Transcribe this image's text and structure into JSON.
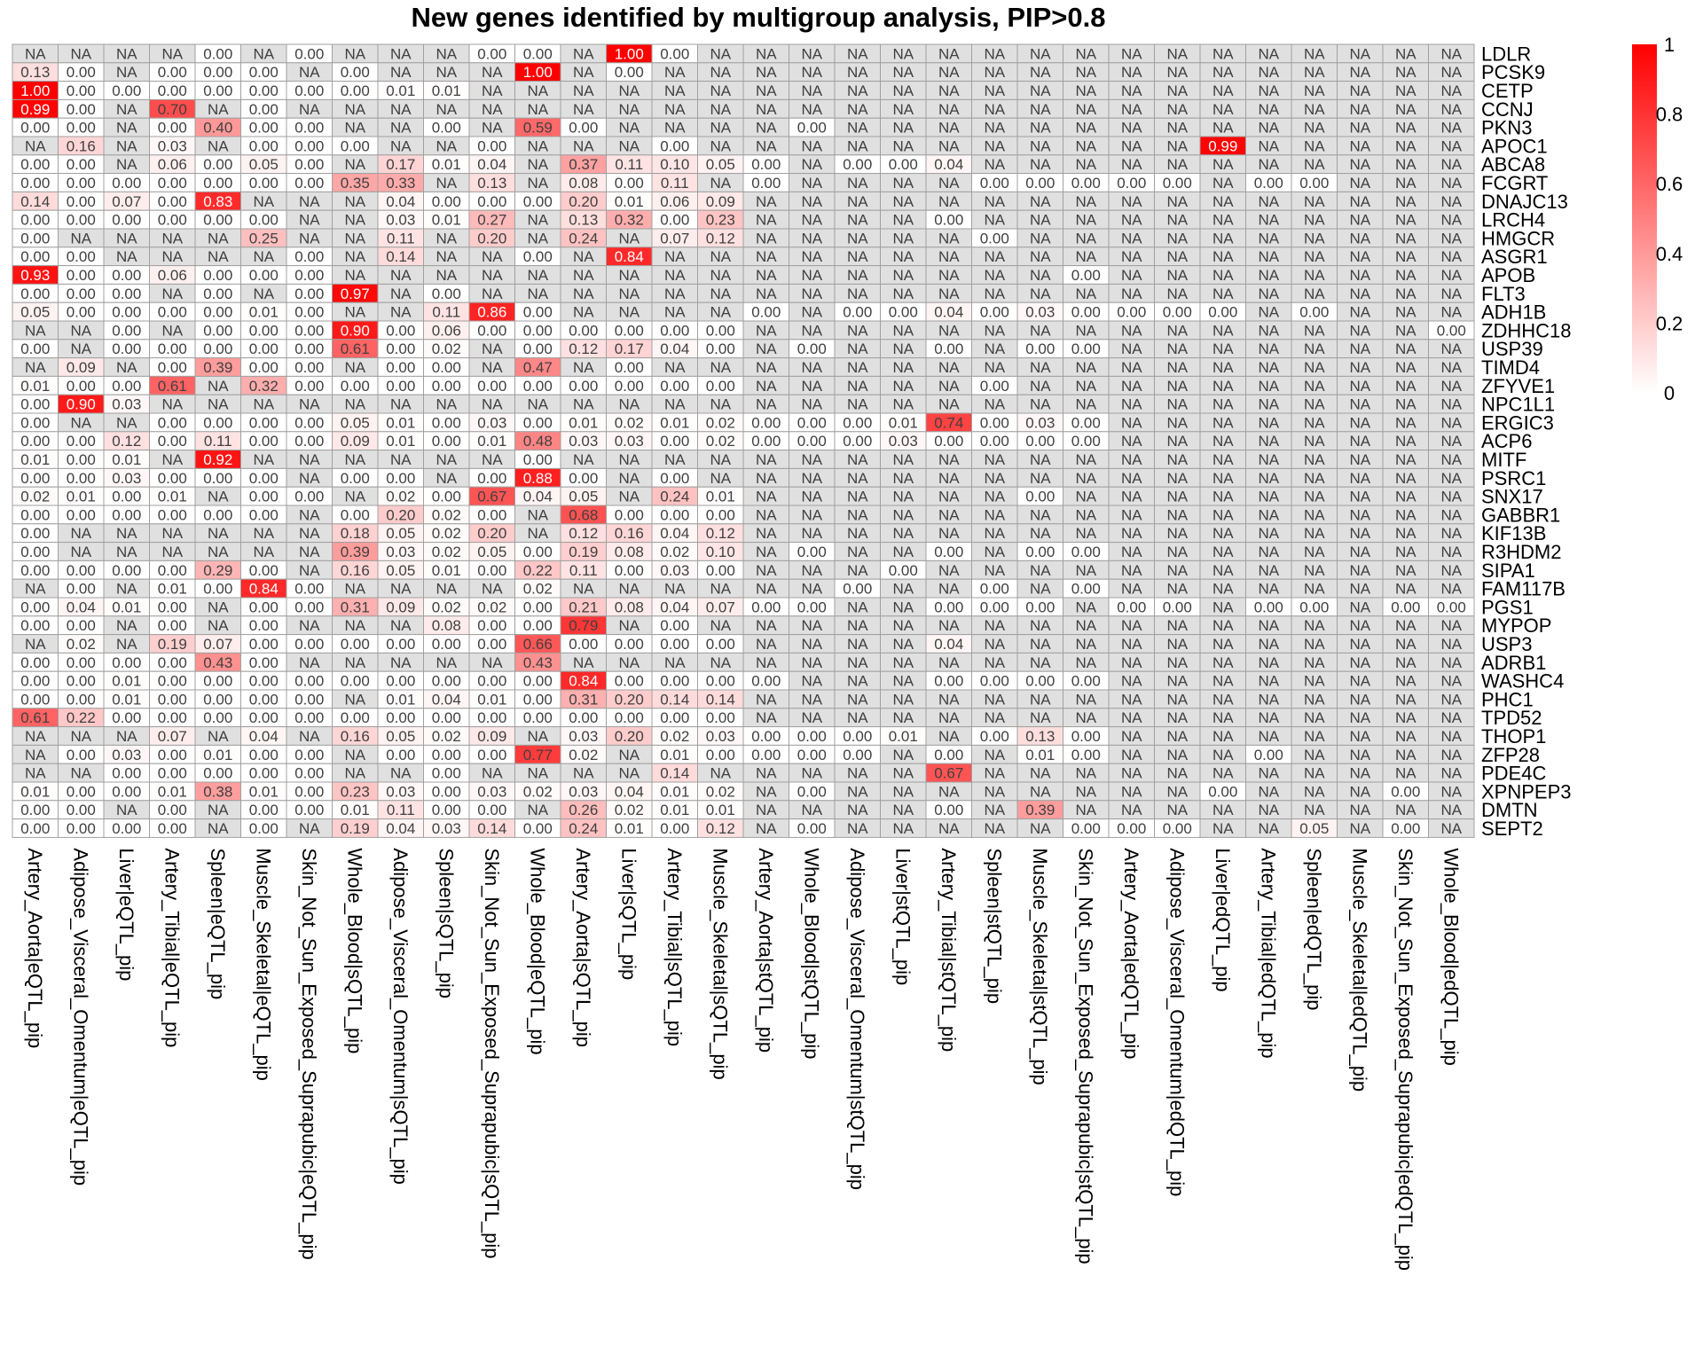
{
  "chart_data": {
    "type": "heatmap",
    "title": "New genes identified by multigroup analysis, PIP>0.8",
    "columns": [
      "Artery_Aorta|eQTL_pip",
      "Adipose_Visceral_Omentum|eQTL_pip",
      "Liver|eQTL_pip",
      "Artery_Tibial|eQTL_pip",
      "Spleen|eQTL_pip",
      "Muscle_Skeletal|eQTL_pip",
      "Skin_Not_Sun_Exposed_Suprapubic|eQTL_pip",
      "Whole_Blood|sQTL_pip",
      "Adipose_Visceral_Omentum|sQTL_pip",
      "Spleen|sQTL_pip",
      "Skin_Not_Sun_Exposed_Suprapubic|sQTL_pip",
      "Whole_Blood|eQTL_pip",
      "Artery_Aorta|sQTL_pip",
      "Liver|sQTL_pip",
      "Artery_Tibial|sQTL_pip",
      "Muscle_Skeletal|sQTL_pip",
      "Artery_Aorta|stQTL_pip",
      "Whole_Blood|stQTL_pip",
      "Adipose_Visceral_Omentum|stQTL_pip",
      "Liver|stQTL_pip",
      "Artery_Tibial|stQTL_pip",
      "Spleen|stQTL_pip",
      "Muscle_Skeletal|stQTL_pip",
      "Skin_Not_Sun_Exposed_Suprapubic|stQTL_pip",
      "Artery_Aorta|edQTL_pip",
      "Adipose_Visceral_Omentum|edQTL_pip",
      "Liver|edQTL_pip",
      "Artery_Tibial|edQTL_pip",
      "Spleen|edQTL_pip",
      "Muscle_Skeletal|edQTL_pip",
      "Skin_Not_Sun_Exposed_Suprapubic|edQTL_pip",
      "Whole_Blood|edQTL_pip"
    ],
    "rows": [
      "LDLR",
      "PCSK9",
      "CETP",
      "CCNJ",
      "PKN3",
      "APOC1",
      "ABCA8",
      "FCGRT",
      "DNAJC13",
      "LRCH4",
      "HMGCR",
      "ASGR1",
      "APOB",
      "FLT3",
      "ADH1B",
      "ZDHHC18",
      "USP39",
      "TIMD4",
      "ZFYVE1",
      "NPC1L1",
      "ERGIC3",
      "ACP6",
      "MITF",
      "PSRC1",
      "SNX17",
      "GABBR1",
      "KIF13B",
      "R3HDM2",
      "SIPA1",
      "FAM117B",
      "PGS1",
      "MYPOP",
      "USP3",
      "ADRB1",
      "WASHC4",
      "PHC1",
      "TPD52",
      "THOP1",
      "ZFP28",
      "PDE4C",
      "XPNPEP3",
      "DMTN",
      "SEPT2"
    ],
    "values": [
      "NA NA NA NA 0.00 NA 0.00 NA NA NA 0.00 0.00 NA 1.00 0.00 NA NA NA NA NA NA NA NA NA NA NA NA NA NA NA NA NA",
      "0.13 0.00 NA 0.00 0.00 0.00 NA 0.00 NA NA NA 1.00 NA 0.00 NA NA NA NA NA NA NA NA NA NA NA NA NA NA NA NA NA NA",
      "1.00 0.00 0.00 0.00 0.00 0.00 0.00 0.00 0.01 0.01 NA NA NA NA NA NA NA NA NA NA NA NA NA NA NA NA NA NA NA NA NA NA",
      "0.99 0.00 NA 0.70 NA 0.00 NA NA NA NA NA NA NA NA NA NA NA NA NA NA NA NA NA NA NA NA NA NA NA NA NA NA",
      "0.00 0.00 NA 0.00 0.40 0.00 0.00 NA NA 0.00 NA 0.59 0.00 NA NA NA NA 0.00 NA NA NA NA NA NA NA NA NA NA NA NA NA NA",
      "NA 0.16 NA 0.03 NA 0.00 0.00 0.00 NA NA 0.00 NA NA NA 0.00 NA NA NA NA NA NA NA NA NA NA NA 0.99 NA NA NA NA NA",
      "0.00 0.00 NA 0.06 0.00 0.05 0.00 NA 0.17 0.01 0.04 NA 0.37 0.11 0.10 0.05 0.00 NA 0.00 0.00 0.04 NA NA NA NA NA NA NA NA NA NA NA",
      "0.00 0.00 0.00 0.00 0.00 0.00 0.00 0.35 0.33 NA 0.13 NA 0.08 0.00 0.11 NA 0.00 NA NA NA NA 0.00 0.00 0.00 0.00 0.00 NA 0.00 0.00 NA NA NA",
      "0.14 0.00 0.07 0.00 0.83 NA NA NA 0.04 0.00 0.00 0.00 0.20 0.01 0.06 0.09 NA NA NA NA NA NA NA NA NA NA NA NA NA NA NA NA",
      "0.00 0.00 0.00 0.00 0.00 0.00 NA NA 0.03 0.01 0.27 NA 0.13 0.32 0.00 0.23 NA NA NA NA 0.00 NA NA NA NA NA NA NA NA NA NA NA",
      "0.00 NA NA NA NA 0.25 NA NA 0.11 NA 0.20 NA 0.24 NA 0.07 0.12 NA NA NA NA NA 0.00 NA NA NA NA NA NA NA NA NA NA",
      "0.00 0.00 NA NA NA NA 0.00 NA 0.14 NA NA 0.00 NA 0.84 NA NA NA NA NA NA NA NA NA NA NA NA NA NA NA NA NA NA",
      "0.93 0.00 0.00 0.06 0.00 0.00 0.00 NA NA NA NA NA NA NA NA NA NA NA NA NA NA NA NA 0.00 NA NA NA NA NA NA NA NA",
      "0.00 0.00 0.00 NA 0.00 NA 0.00 0.97 NA 0.00 NA NA NA NA NA NA NA NA NA NA NA NA NA NA NA NA NA NA NA NA NA NA",
      "0.05 0.00 0.00 0.00 0.00 0.01 0.00 NA NA 0.11 0.86 0.00 NA NA NA NA 0.00 NA 0.00 0.00 0.04 0.00 0.03 0.00 0.00 0.00 0.00 NA 0.00 NA NA NA",
      "NA NA 0.00 NA 0.00 0.00 0.00 0.90 0.00 0.06 0.00 0.00 0.00 0.00 0.00 0.00 NA NA NA NA NA NA NA NA NA NA NA NA NA NA NA 0.00",
      "0.00 NA 0.00 0.00 0.00 0.00 0.00 0.61 0.00 0.02 NA 0.00 0.12 0.17 0.04 0.00 NA 0.00 NA NA 0.00 NA 0.00 0.00 NA NA NA NA NA NA NA NA",
      "NA 0.09 NA 0.00 0.39 0.00 0.00 NA 0.00 0.00 NA 0.47 NA 0.00 NA NA NA NA NA NA NA NA NA NA NA NA NA NA NA NA NA NA",
      "0.01 0.00 0.00 0.61 NA 0.32 0.00 0.00 0.00 0.00 0.00 0.00 0.00 0.00 0.00 0.00 NA NA NA NA NA 0.00 NA NA NA NA NA NA NA NA NA NA",
      "0.00 0.90 0.03 NA NA NA NA NA NA NA NA NA NA NA NA NA NA NA NA NA NA NA NA NA NA NA NA NA NA NA NA NA",
      "0.00 NA NA 0.00 0.00 0.00 0.00 0.05 0.01 0.00 0.03 0.00 0.01 0.02 0.01 0.02 0.00 0.00 0.00 0.01 0.74 0.00 0.03 0.00 NA NA NA NA NA NA NA NA",
      "0.00 0.00 0.12 0.00 0.11 0.00 0.00 0.09 0.01 0.00 0.01 0.48 0.03 0.03 0.00 0.02 0.00 0.00 0.00 0.03 0.00 0.00 0.00 0.00 NA NA NA NA NA NA NA NA",
      "0.01 0.00 0.01 NA 0.92 NA NA NA NA NA NA 0.00 NA NA NA NA NA NA NA NA NA NA NA NA NA NA NA NA NA NA NA NA",
      "0.00 0.00 0.03 0.00 0.00 0.00 NA 0.00 0.00 NA 0.00 0.88 0.00 NA 0.00 NA NA NA NA NA NA NA NA NA NA NA NA NA NA NA NA NA",
      "0.02 0.01 0.00 0.01 NA 0.00 0.00 NA 0.02 0.00 0.67 0.04 0.05 NA 0.24 0.01 NA NA NA NA NA NA 0.00 NA NA NA NA NA NA NA NA NA",
      "0.00 0.00 0.00 0.00 0.00 0.00 NA 0.00 0.20 0.02 0.00 NA 0.68 0.00 0.00 0.00 NA NA NA NA NA NA NA NA NA NA NA NA NA NA NA NA",
      "0.00 NA NA NA NA NA NA 0.18 0.05 0.02 0.20 NA 0.12 0.16 0.04 0.12 NA NA NA NA NA NA NA NA NA NA NA NA NA NA NA NA",
      "0.00 NA NA NA NA NA NA 0.39 0.03 0.02 0.05 0.00 0.19 0.08 0.02 0.10 NA 0.00 NA NA 0.00 NA 0.00 0.00 NA NA NA NA NA NA NA NA",
      "0.00 0.00 0.00 0.00 0.29 0.00 NA 0.16 0.05 0.01 0.00 0.22 0.11 0.00 0.03 0.00 NA NA NA 0.00 NA NA NA NA NA NA NA NA NA NA NA NA",
      "NA 0.00 NA 0.01 0.00 0.84 0.00 NA NA NA NA 0.02 NA NA NA NA NA NA 0.00 NA NA 0.00 NA 0.00 NA NA NA NA NA NA NA NA",
      "0.00 0.04 0.01 0.00 NA 0.00 0.00 0.31 0.09 0.02 0.02 0.00 0.21 0.08 0.04 0.07 0.00 0.00 NA NA 0.00 0.00 0.00 NA 0.00 0.00 NA 0.00 0.00 NA 0.00 0.00",
      "0.00 0.00 NA 0.00 NA 0.00 NA NA NA 0.08 0.00 0.00 0.79 NA 0.00 NA NA NA NA NA NA NA NA NA NA NA NA NA NA NA NA NA",
      "NA 0.02 NA 0.19 0.07 0.00 0.00 0.00 0.00 0.00 0.00 0.66 0.00 0.00 0.00 0.00 NA NA NA NA 0.04 NA NA NA NA NA NA NA NA NA NA NA",
      "0.00 0.00 0.00 0.00 0.43 0.00 NA NA NA NA NA 0.43 NA NA NA NA NA NA NA NA NA NA NA NA NA NA NA NA NA NA NA NA",
      "0.00 0.00 0.01 0.00 0.00 0.00 0.00 0.00 0.00 0.00 0.00 0.00 0.84 0.00 0.00 0.00 0.00 NA NA NA 0.00 0.00 0.00 0.00 NA NA NA NA NA NA NA NA",
      "0.00 0.00 0.01 0.00 0.00 0.00 0.00 NA 0.01 0.04 0.01 0.00 0.31 0.20 0.14 0.14 NA NA NA NA NA NA NA NA NA NA NA NA NA NA NA NA",
      "0.61 0.22 0.00 0.00 0.00 0.00 0.00 0.00 0.00 0.00 0.00 0.00 0.00 0.00 0.00 0.00 NA NA NA NA NA NA NA NA NA NA NA NA NA NA NA NA",
      "NA NA NA 0.07 NA 0.04 NA 0.16 0.05 0.02 0.09 NA 0.03 0.20 0.02 0.03 0.00 0.00 0.00 0.01 NA 0.00 0.13 0.00 NA NA NA NA NA NA NA NA",
      "NA 0.00 0.03 0.00 0.01 0.00 0.00 NA 0.00 0.00 0.00 0.77 0.02 NA 0.01 0.00 0.00 0.00 0.00 NA 0.00 NA 0.01 0.00 NA NA NA 0.00 NA NA NA NA",
      "NA NA 0.00 0.00 0.00 0.00 0.00 NA NA 0.00 NA NA NA NA 0.14 NA NA NA NA NA 0.67 NA NA NA NA NA NA NA NA NA NA NA",
      "0.01 0.00 0.00 0.01 0.38 0.01 0.00 0.23 0.03 0.00 0.03 0.02 0.03 0.04 0.01 0.02 NA 0.00 NA NA NA NA NA NA NA NA 0.00 NA NA NA 0.00 NA",
      "0.00 0.00 NA 0.00 NA 0.00 0.00 0.01 0.11 0.00 0.00 NA 0.26 0.02 0.01 0.01 NA NA NA NA 0.00 NA 0.39 NA NA NA NA NA NA NA NA NA",
      "0.00 0.00 0.00 0.00 NA 0.00 NA 0.19 0.04 0.03 0.14 0.00 0.24 0.01 0.00 0.12 NA 0.00 NA NA NA NA NA 0.00 0.00 0.00 NA NA 0.05 NA 0.00 NA"
    ],
    "legend": {
      "ticks": [
        "1",
        "0.8",
        "0.6",
        "0.4",
        "0.2",
        "0"
      ],
      "range": [
        0,
        1
      ],
      "low_color": "#ffffff",
      "high_color": "#ff0000"
    },
    "colors": {
      "na_fill": "#e0e0e0",
      "cell_border": "#a0a0a0",
      "text_dark": "#404040",
      "text_light": "#ffffff"
    },
    "grid": true,
    "legend_placement": "right"
  }
}
